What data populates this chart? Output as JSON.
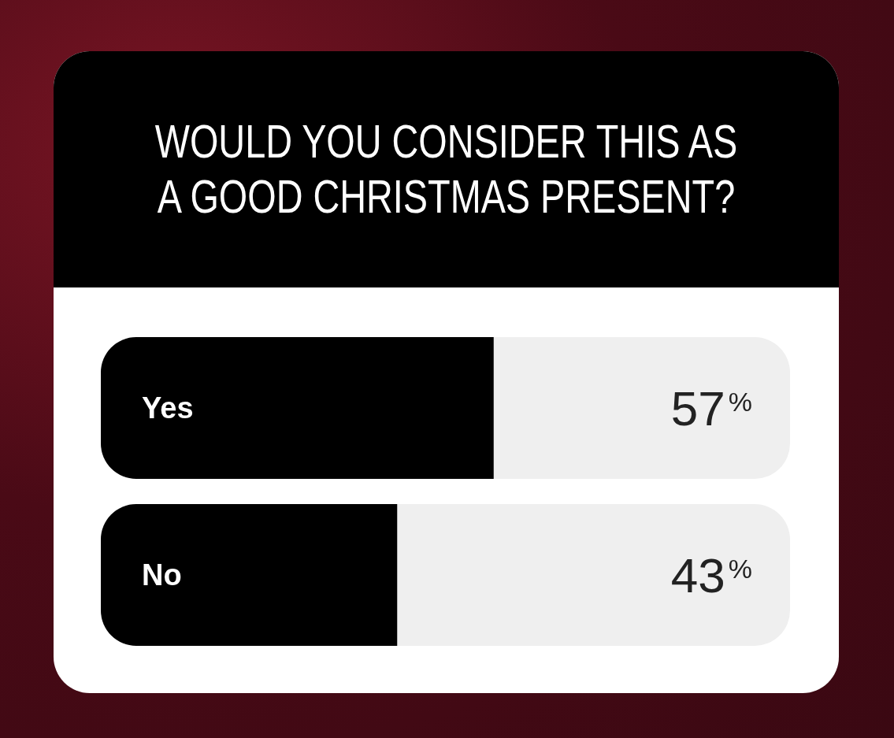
{
  "chart_data": {
    "type": "bar",
    "orientation": "horizontal",
    "title": "WOULD YOU CONSIDER THIS AS A GOOD CHRISTMAS PRESENT?",
    "categories": [
      "Yes",
      "No"
    ],
    "values": [
      57,
      43
    ],
    "color": "#000000",
    "value_labels": [
      "57%",
      "43%"
    ],
    "xlim": [
      0,
      100
    ]
  }
}
